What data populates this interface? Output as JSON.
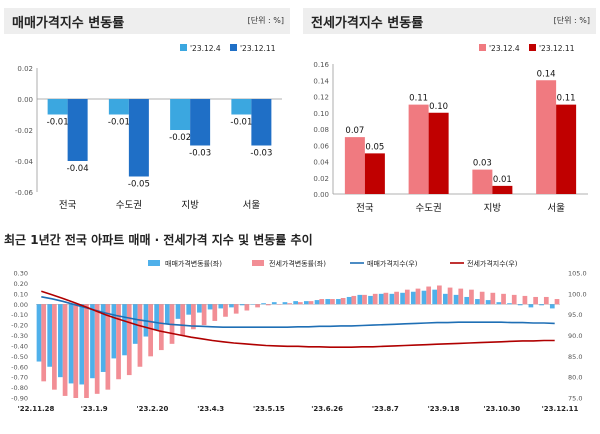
{
  "chart_data": [
    {
      "type": "bar",
      "title": "매매가격지수 변동률",
      "unit_label": "[단위 : %]",
      "categories": [
        "전국",
        "수도권",
        "지방",
        "서울"
      ],
      "series": [
        {
          "name": "'23.12.4",
          "color": "#3ba7e0",
          "values": [
            -0.01,
            -0.01,
            -0.02,
            -0.01
          ]
        },
        {
          "name": "'23.12.11",
          "color": "#1f6fc6",
          "values": [
            -0.04,
            -0.05,
            -0.03,
            -0.03
          ]
        }
      ],
      "ylim": [
        -0.06,
        0.02
      ],
      "yticks": [
        "0.02",
        "0.00",
        "-0.02",
        "-0.04",
        "-0.06"
      ],
      "legend": "top-right",
      "grid": false
    },
    {
      "type": "bar",
      "title": "전세가격지수 변동률",
      "unit_label": "[단위 : %]",
      "categories": [
        "전국",
        "수도권",
        "지방",
        "서울"
      ],
      "series": [
        {
          "name": "'23.12.4",
          "color": "#f07a80",
          "values": [
            0.07,
            0.11,
            0.03,
            0.14
          ]
        },
        {
          "name": "'23.12.11",
          "color": "#c00000",
          "values": [
            0.05,
            0.1,
            0.01,
            0.11
          ]
        }
      ],
      "ylim": [
        0,
        0.16
      ],
      "yticks": [
        "0.16",
        "0.14",
        "0.12",
        "0.10",
        "0.08",
        "0.06",
        "0.04",
        "0.02",
        "0.00"
      ],
      "legend": "top-right",
      "grid": false
    },
    {
      "type": "bar+line",
      "title": "최근 1년간 전국 아파트 매매 · 전세가격 지수 및 변동률 추이",
      "x_tick_labels": [
        "'22.11.28",
        "'23.1.9",
        "'23.2.20",
        "'23.4.3",
        "'23.5.15",
        "'23.6.26",
        "'23.8.7",
        "'23.9.18",
        "'23.10.30",
        "'23.12.11"
      ],
      "left_axis": {
        "ylim": [
          -0.9,
          0.3
        ],
        "ticks": [
          "0.30",
          "0.20",
          "0.10",
          "0.00",
          "-0.10",
          "-0.20",
          "-0.30",
          "-0.40",
          "-0.50",
          "-0.60",
          "-0.70",
          "-0.80",
          "-0.90"
        ]
      },
      "right_axis": {
        "ylim": [
          75.0,
          105.0
        ],
        "ticks": [
          "105.0",
          "100.0",
          "95.0",
          "90.0",
          "85.0",
          "80.0",
          "75.0"
        ]
      },
      "legend": "top",
      "series": [
        {
          "name": "매매가격변동률(좌)",
          "kind": "bar",
          "axis": "left",
          "color": "#4fb0ea",
          "values": [
            -0.55,
            -0.6,
            -0.7,
            -0.76,
            -0.77,
            -0.71,
            -0.65,
            -0.52,
            -0.49,
            -0.38,
            -0.31,
            -0.25,
            -0.19,
            -0.14,
            -0.1,
            -0.08,
            -0.05,
            -0.04,
            -0.03,
            -0.01,
            0.0,
            0.01,
            0.02,
            0.02,
            0.03,
            0.03,
            0.04,
            0.05,
            0.05,
            0.07,
            0.09,
            0.08,
            0.1,
            0.1,
            0.11,
            0.12,
            0.13,
            0.14,
            0.1,
            0.09,
            0.07,
            0.05,
            0.04,
            0.02,
            0.01,
            -0.01,
            -0.03,
            -0.01,
            -0.04
          ]
        },
        {
          "name": "전세가격변동률(좌)",
          "kind": "bar",
          "axis": "left",
          "color": "#f28e95",
          "values": [
            -0.74,
            -0.82,
            -0.88,
            -0.9,
            -0.9,
            -0.86,
            -0.82,
            -0.72,
            -0.68,
            -0.6,
            -0.5,
            -0.44,
            -0.38,
            -0.3,
            -0.24,
            -0.2,
            -0.16,
            -0.12,
            -0.09,
            -0.06,
            -0.03,
            -0.01,
            0.0,
            0.01,
            0.02,
            0.03,
            0.05,
            0.05,
            0.06,
            0.08,
            0.09,
            0.1,
            0.11,
            0.12,
            0.14,
            0.15,
            0.17,
            0.18,
            0.16,
            0.15,
            0.14,
            0.12,
            0.11,
            0.1,
            0.09,
            0.08,
            0.07,
            0.07,
            0.05
          ]
        },
        {
          "name": "매매가격지수(우)",
          "kind": "line",
          "axis": "right",
          "color": "#1f6fb5",
          "values": [
            99.3,
            98.8,
            98.2,
            97.5,
            96.8,
            96.1,
            95.4,
            94.8,
            94.3,
            93.8,
            93.4,
            93.0,
            92.7,
            92.5,
            92.3,
            92.2,
            92.1,
            92.0,
            92.0,
            92.0,
            92.0,
            92.0,
            92.0,
            92.0,
            92.1,
            92.1,
            92.2,
            92.2,
            92.3,
            92.3,
            92.4,
            92.5,
            92.6,
            92.7,
            92.8,
            92.9,
            93.0,
            93.1,
            93.1,
            93.2,
            93.2,
            93.2,
            93.2,
            93.2,
            93.1,
            93.1,
            93.0,
            93.0,
            92.9
          ]
        },
        {
          "name": "전세가격지수(우)",
          "kind": "line",
          "axis": "right",
          "color": "#b00000",
          "values": [
            100.6,
            99.8,
            98.9,
            98.0,
            97.0,
            96.0,
            95.0,
            94.1,
            93.3,
            92.5,
            91.8,
            91.1,
            90.6,
            90.1,
            89.6,
            89.2,
            88.8,
            88.5,
            88.2,
            88.0,
            87.8,
            87.6,
            87.5,
            87.4,
            87.4,
            87.3,
            87.3,
            87.2,
            87.2,
            87.2,
            87.3,
            87.3,
            87.4,
            87.5,
            87.6,
            87.7,
            87.8,
            87.9,
            88.0,
            88.1,
            88.2,
            88.3,
            88.4,
            88.5,
            88.6,
            88.7,
            88.7,
            88.8,
            88.8
          ]
        }
      ]
    }
  ]
}
